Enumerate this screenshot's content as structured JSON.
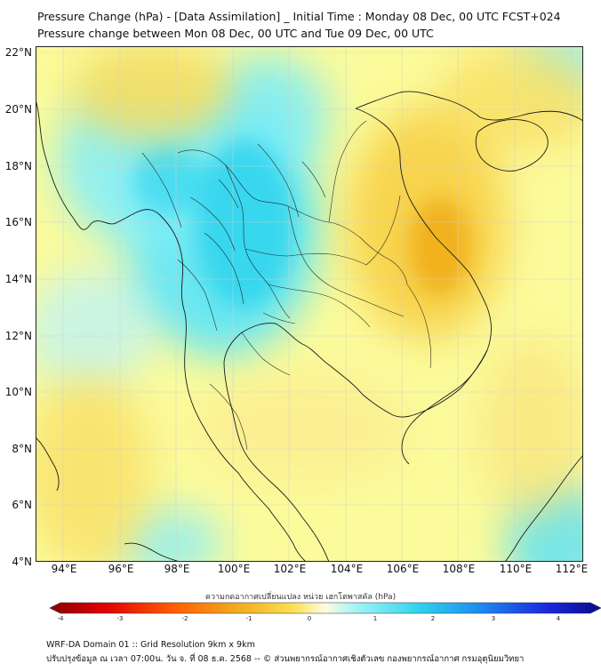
{
  "title": {
    "line1": "Pressure Change (hPa) - [Data Assimilation] _ Initial Time : Monday 08 Dec, 00 UTC FCST+024",
    "line2": "Pressure change between Mon 08 Dec, 00 UTC and Tue 09 Dec, 00 UTC"
  },
  "map": {
    "lat_labels": [
      "22°N",
      "20°N",
      "18°N",
      "16°N",
      "14°N",
      "12°N",
      "10°N",
      "8°N",
      "6°N",
      "4°N"
    ],
    "lon_labels": [
      "94°E",
      "96°E",
      "98°E",
      "100°E",
      "102°E",
      "104°E",
      "106°E",
      "108°E",
      "110°E",
      "112°E"
    ],
    "extent": {
      "lon_min": 93,
      "lon_max": 112.4,
      "lat_min": 4,
      "lat_max": 22.2
    },
    "colors": {
      "positive": "#34d6ee",
      "negative": "#f3b51e",
      "neutral": "#fbfb9c",
      "coast": "#1a1a1a"
    }
  },
  "colorbar": {
    "title": "ความกดอากาศเปลี่ยนแปลง หน่วย เฮกโตพาสคัล (hPa)",
    "ticks": [
      "-4",
      "-3",
      "-2",
      "-1",
      "0",
      "1",
      "2",
      "3",
      "4"
    ],
    "min": -4,
    "max": 4
  },
  "footer": {
    "line1": "WRF-DA Domain 01 :: Grid Resolution 9km x 9km",
    "line2": "ปรับปรุงข้อมูล ณ เวลา 07:00น. วัน จ. ที่ 08 ธ.ค. 2568 -- © ส่วนพยากรณ์อากาศเชิงตัวเลข กองพยากรณ์อากาศ กรมอุตุนิยมวิทยา"
  }
}
